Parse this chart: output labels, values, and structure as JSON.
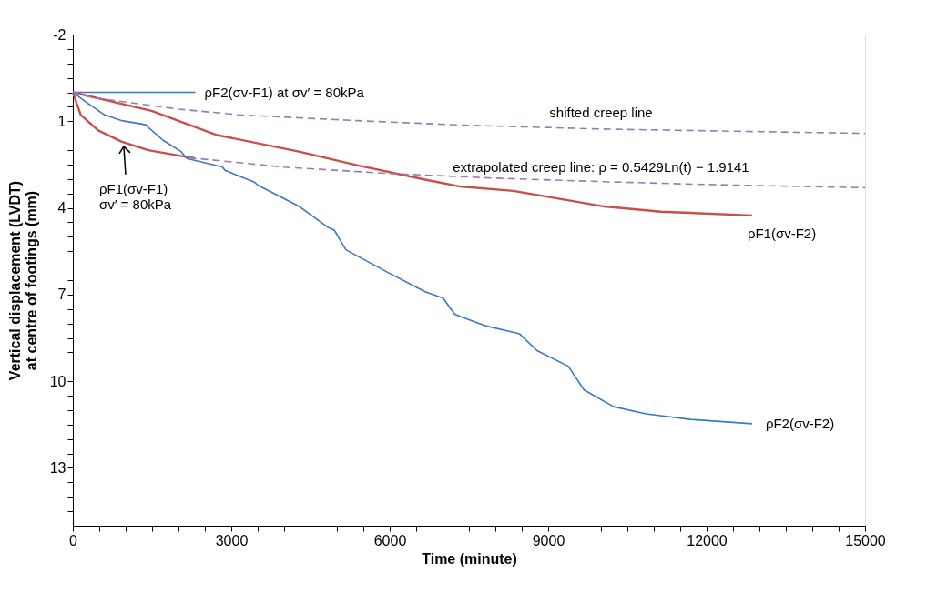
{
  "chart_data": {
    "type": "line",
    "xlabel": "Time (minute)",
    "ylabel": "Vertical displacement (LVDT)\nat centre of footings (mm)",
    "xlim": [
      0,
      15000
    ],
    "xticks": [
      0,
      {
        "value": 500,
        "label": null
      },
      {
        "value": 1000,
        "label": null
      },
      {
        "value": 1500,
        "label": null
      },
      {
        "value": 2000,
        "label": null
      },
      {
        "value": 2500,
        "label": null
      },
      3000,
      {
        "value": 3500,
        "label": null
      },
      {
        "value": 4000,
        "label": null
      },
      {
        "value": 4500,
        "label": null
      },
      {
        "value": 5000,
        "label": null
      },
      {
        "value": 5500,
        "label": null
      },
      6000,
      {
        "value": 6500,
        "label": null
      },
      {
        "value": 7000,
        "label": null
      },
      {
        "value": 7500,
        "label": null
      },
      {
        "value": 8000,
        "label": null
      },
      {
        "value": 8500,
        "label": null
      },
      9000,
      {
        "value": 9500,
        "label": null
      },
      {
        "value": 10000,
        "label": null
      },
      {
        "value": 10500,
        "label": null
      },
      {
        "value": 11000,
        "label": null
      },
      {
        "value": 11500,
        "label": null
      },
      12000,
      {
        "value": 12500,
        "label": null
      },
      {
        "value": 13000,
        "label": null
      },
      {
        "value": 13500,
        "label": null
      },
      {
        "value": 14000,
        "label": null
      },
      {
        "value": 14500,
        "label": null
      },
      15000
    ],
    "ylim": [
      15,
      -2
    ],
    "yticks": [
      -2,
      {
        "value": -1.5,
        "label": null
      },
      {
        "value": -1,
        "label": null
      },
      {
        "value": -0.5,
        "label": null
      },
      {
        "value": 0,
        "label": null
      },
      {
        "value": 0.5,
        "label": null
      },
      1,
      {
        "value": 1.5,
        "label": null
      },
      {
        "value": 2,
        "label": null
      },
      {
        "value": 2.5,
        "label": null
      },
      {
        "value": 3,
        "label": null
      },
      {
        "value": 3.5,
        "label": null
      },
      4,
      {
        "value": 4.5,
        "label": null
      },
      {
        "value": 5,
        "label": null
      },
      {
        "value": 5.5,
        "label": null
      },
      {
        "value": 6,
        "label": null
      },
      {
        "value": 6.5,
        "label": null
      },
      7,
      {
        "value": 7.5,
        "label": null
      },
      {
        "value": 8,
        "label": null
      },
      {
        "value": 8.5,
        "label": null
      },
      {
        "value": 9,
        "label": null
      },
      {
        "value": 9.5,
        "label": null
      },
      10,
      {
        "value": 10.5,
        "label": null
      },
      {
        "value": 11,
        "label": null
      },
      {
        "value": 11.5,
        "label": null
      },
      {
        "value": 12,
        "label": null
      },
      {
        "value": 12.5,
        "label": null
      },
      13,
      {
        "value": 13.5,
        "label": null
      },
      {
        "value": 14,
        "label": null
      },
      {
        "value": 14.5,
        "label": null
      }
    ],
    "grid": false,
    "marker": "none",
    "series": [
      {
        "name": "ρF2(σv-F1) at σv′ = 80kPa",
        "color": "#3a78c2",
        "x": [
          0,
          2320
        ],
        "values": [
          0,
          0
        ]
      },
      {
        "name": "ρF1(σv-F2)",
        "color": "#c8504a",
        "x": [
          0,
          1490,
          2710,
          4280,
          5380,
          6670,
          7340,
          8340,
          10020,
          11130,
          12860
        ],
        "values": [
          0,
          0.64,
          1.47,
          2.05,
          2.52,
          3.02,
          3.26,
          3.41,
          3.94,
          4.13,
          4.26
        ]
      },
      {
        "name": "ρF1(σv-F1)\nσv′ = 80kPa",
        "color": "#c8504a",
        "x": [
          0,
          150,
          480,
          930,
          1430,
          2160,
          2300
        ],
        "values": [
          0,
          0.78,
          1.32,
          1.71,
          2.0,
          2.24,
          2.27
        ]
      },
      {
        "name": "ρF2(σv-F2)",
        "color": "#3a78c2",
        "x": [
          0,
          260,
          600,
          930,
          1380,
          1420,
          1710,
          2050,
          2160,
          2830,
          2880,
          3440,
          3500,
          4280,
          4390,
          4830,
          4950,
          5170,
          5950,
          6670,
          7010,
          7230,
          7790,
          8460,
          8790,
          9380,
          9680,
          10240,
          10850,
          11690,
          12860
        ],
        "values": [
          0,
          0.35,
          0.78,
          0.98,
          1.12,
          1.2,
          1.66,
          2.05,
          2.29,
          2.58,
          2.7,
          3.11,
          3.21,
          3.94,
          4.09,
          4.67,
          4.77,
          5.45,
          6.22,
          6.9,
          7.12,
          7.68,
          8.07,
          8.36,
          8.94,
          9.48,
          10.3,
          10.88,
          11.13,
          11.32,
          11.47
        ]
      },
      {
        "name": "shifted creep line",
        "color": "#9a7bb0",
        "line_style": "dashed",
        "x": [
          0,
          300,
          650,
          2000,
          3160,
          5380,
          7340,
          10000,
          15000
        ],
        "values": [
          0,
          0.15,
          0.25,
          0.58,
          0.78,
          0.98,
          1.13,
          1.27,
          1.42
        ]
      },
      {
        "name": "extrapolated creep line: ρ = 0.5429Ln(t) − 1.9141",
        "color": "#9a7bb0",
        "line_style": "dashed",
        "x": [
          2200,
          4000,
          6000,
          8000,
          10000,
          12000,
          15000
        ],
        "values": [
          2.26,
          2.59,
          2.81,
          2.97,
          3.09,
          3.19,
          3.3
        ]
      }
    ]
  }
}
